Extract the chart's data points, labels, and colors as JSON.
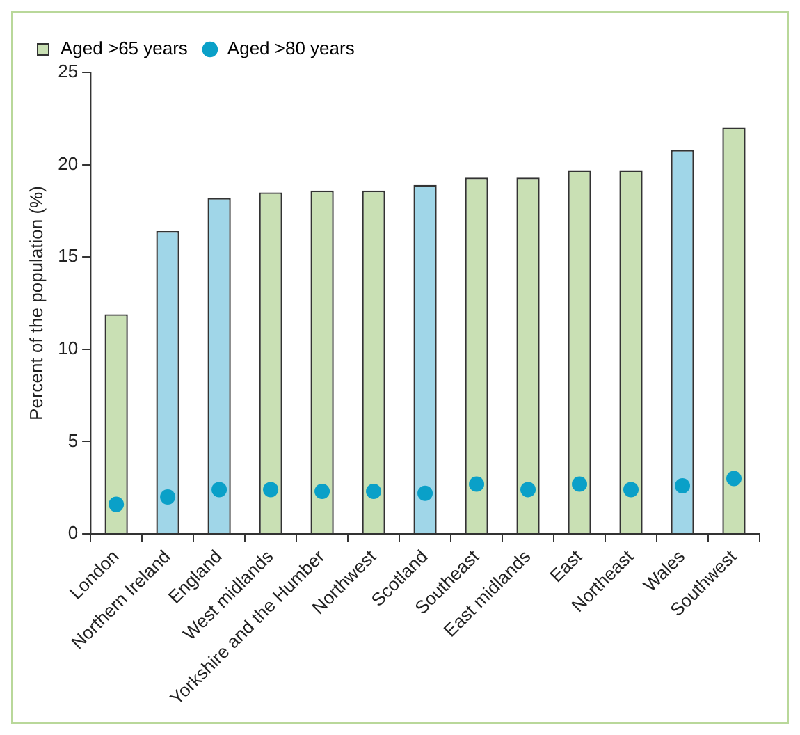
{
  "chart_data": {
    "type": "bar",
    "ylabel": "Percent of the population (%)",
    "categories": [
      "London",
      "Northern Ireland",
      "England",
      "West midlands",
      "Yorkshire and the Humber",
      "Northwest",
      "Scotland",
      "Southeast",
      "East midlands",
      "East",
      "Northeast",
      "Wales",
      "Southwest"
    ],
    "series": [
      {
        "name": "Aged >65 years",
        "type": "bar",
        "colors": [
          "#c9e0b4",
          "#a0d6e8",
          "#a0d6e8",
          "#c9e0b4",
          "#c9e0b4",
          "#c9e0b4",
          "#a0d6e8",
          "#c9e0b4",
          "#c9e0b4",
          "#c9e0b4",
          "#c9e0b4",
          "#a0d6e8",
          "#c9e0b4"
        ],
        "values": [
          11.9,
          16.4,
          18.2,
          18.5,
          18.6,
          18.6,
          18.9,
          19.3,
          19.3,
          19.7,
          19.7,
          20.8,
          22.0
        ]
      },
      {
        "name": "Aged >80 years",
        "type": "scatter",
        "color": "#0aa0c8",
        "x": [
          "London",
          "Northern Ireland",
          "England",
          "West midlands",
          "Yorkshire and the Humber",
          "Northwest",
          "Scotland",
          "Southeast",
          "East midlands",
          "East",
          "Northeast",
          "Wales",
          "Southwest"
        ],
        "values": [
          1.6,
          2.0,
          2.4,
          2.4,
          2.3,
          2.3,
          2.2,
          2.7,
          2.4,
          2.7,
          2.4,
          2.6,
          3.0
        ]
      }
    ],
    "ylim": [
      0,
      25
    ],
    "yticks": [
      0,
      5,
      10,
      15,
      20,
      25
    ],
    "grid": false,
    "legend": "top left",
    "marker": "circle"
  }
}
